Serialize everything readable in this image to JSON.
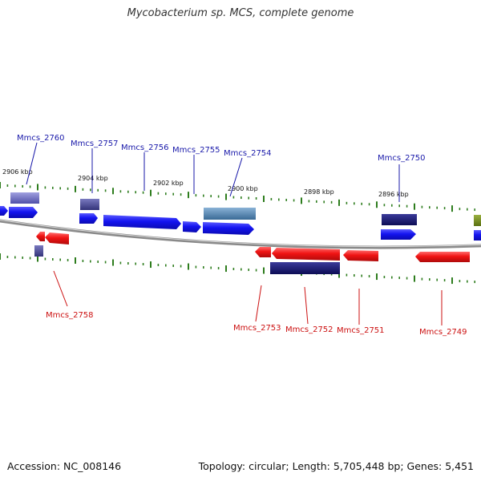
{
  "title": "Mycobacterium sp. MCS, complete genome",
  "footer": {
    "accession": "Accession: NC_008146",
    "summary": "Topology: circular; Length: 5,705,448 bp; Genes: 5,451"
  },
  "colors": {
    "forward_gene": "#1111ee",
    "reverse_gene": "#ee1111",
    "forward_label": "#1a1aaa",
    "reverse_label": "#cc1111",
    "tick": "#2e7d1e",
    "backbone": "#8a8a8a"
  },
  "tick_labels": [
    "2906 kbp",
    "2904 kbp",
    "2902 kbp",
    "2900 kbp",
    "2898 kbp",
    "2896 kbp"
  ],
  "labels": {
    "forward": [
      "Mmcs_2760",
      "Mmcs_2757",
      "Mmcs_2756",
      "Mmcs_2755",
      "Mmcs_2754",
      "Mmcs_2750"
    ],
    "reverse": [
      "Mmcs_2758",
      "Mmcs_2753",
      "Mmcs_2752",
      "Mmcs_2751",
      "Mmcs_2749"
    ]
  }
}
